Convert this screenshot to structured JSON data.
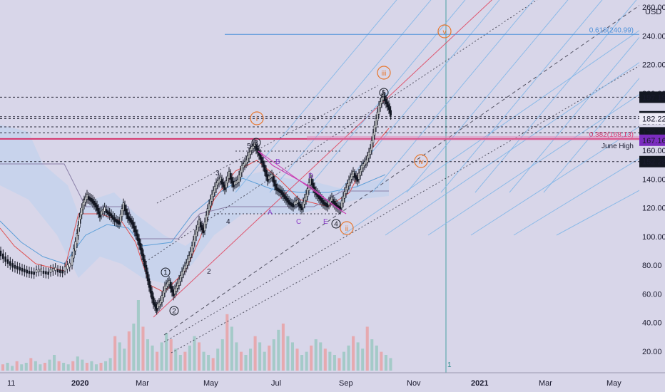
{
  "chart_data": {
    "type": "candlestick",
    "currency_label": "USD",
    "y_axis": {
      "ylim": [
        5,
        265
      ],
      "ticks": [
        20,
        40,
        60,
        80,
        100,
        120,
        140,
        160,
        180,
        200,
        220,
        240,
        260
      ],
      "tick_labels": [
        "20.00",
        "40.00",
        "60.00",
        "80.00",
        "100.00",
        "120.00",
        "140.00",
        "160.00",
        "180.00",
        "200.00",
        "220.00",
        "240.00",
        "260.00"
      ]
    },
    "x_axis": {
      "tick_labels": [
        "11",
        "2020",
        "Mar",
        "May",
        "Jul",
        "Sep",
        "Nov",
        "2021",
        "Mar",
        "May"
      ]
    },
    "price_labels": [
      {
        "text": "197.19",
        "value": 197.19,
        "style": "dark"
      },
      {
        "text": "183.58",
        "value": 183.58,
        "style": "dark"
      },
      {
        "text": "182.22",
        "value": 182.22,
        "style": "light"
      },
      {
        "text": "172.36",
        "value": 172.36,
        "style": "dark"
      },
      {
        "text": "167.16",
        "value": 167.16,
        "style": "purple"
      },
      {
        "text": "152.28",
        "value": 152.28,
        "style": "dark"
      }
    ],
    "horizontal_levels": [
      {
        "value": 197.19,
        "style": "dotted"
      },
      {
        "value": 183.58,
        "style": "dotted"
      },
      {
        "value": 182.22,
        "style": "dotted"
      },
      {
        "value": 176.5,
        "style": "dotted"
      },
      {
        "value": 172.36,
        "style": "dotted"
      },
      {
        "value": 152.28,
        "style": "dotted"
      }
    ],
    "fib_levels": [
      {
        "label": "0.618(240.99)",
        "value": 240.99,
        "color": "#4a90d9"
      },
      {
        "label": "0.382(168.13)",
        "value": 168.13,
        "color": "#d6336c"
      }
    ],
    "annotations": [
      {
        "text": "June High",
        "value": 163.5
      }
    ],
    "major_wave_labels": [
      "i",
      "ii",
      "iii",
      "iv",
      "v"
    ],
    "minor_wave_labels": [
      "1",
      "2",
      "3",
      "4",
      "5"
    ],
    "small_labels": [
      "2",
      "3",
      "4",
      "5",
      "1"
    ],
    "abcde_labels": [
      "A",
      "B",
      "C",
      "D",
      "E"
    ],
    "price_path": [
      [
        0,
        90
      ],
      [
        10,
        84
      ],
      [
        20,
        80
      ],
      [
        30,
        78
      ],
      [
        40,
        76
      ],
      [
        50,
        75
      ],
      [
        60,
        76
      ],
      [
        70,
        75
      ],
      [
        80,
        77
      ],
      [
        90,
        76
      ],
      [
        100,
        80
      ],
      [
        107,
        95
      ],
      [
        112,
        112
      ],
      [
        117,
        122
      ],
      [
        123,
        128
      ],
      [
        129,
        126
      ],
      [
        135,
        122
      ],
      [
        141,
        115
      ],
      [
        148,
        119
      ],
      [
        155,
        116
      ],
      [
        162,
        112
      ],
      [
        168,
        110
      ],
      [
        174,
        122
      ],
      [
        180,
        114
      ],
      [
        186,
        110
      ],
      [
        192,
        102
      ],
      [
        198,
        92
      ],
      [
        204,
        80
      ],
      [
        210,
        66
      ],
      [
        216,
        54
      ],
      [
        220,
        50
      ],
      [
        226,
        54
      ],
      [
        232,
        64
      ],
      [
        238,
        68
      ],
      [
        244,
        60
      ],
      [
        250,
        66
      ],
      [
        256,
        74
      ],
      [
        262,
        80
      ],
      [
        268,
        88
      ],
      [
        274,
        100
      ],
      [
        280,
        110
      ],
      [
        286,
        104
      ],
      [
        292,
        118
      ],
      [
        298,
        128
      ],
      [
        304,
        136
      ],
      [
        310,
        140
      ],
      [
        316,
        134
      ],
      [
        322,
        144
      ],
      [
        328,
        136
      ],
      [
        334,
        138
      ],
      [
        340,
        148
      ],
      [
        346,
        152
      ],
      [
        352,
        160
      ],
      [
        358,
        164
      ],
      [
        364,
        158
      ],
      [
        370,
        150
      ],
      [
        376,
        140
      ],
      [
        382,
        142
      ],
      [
        388,
        134
      ],
      [
        394,
        132
      ],
      [
        400,
        128
      ],
      [
        406,
        124
      ],
      [
        412,
        122
      ],
      [
        418,
        124
      ],
      [
        424,
        120
      ],
      [
        430,
        128
      ],
      [
        436,
        140
      ],
      [
        442,
        132
      ],
      [
        448,
        128
      ],
      [
        454,
        124
      ],
      [
        460,
        122
      ],
      [
        466,
        126
      ],
      [
        472,
        122
      ],
      [
        478,
        120
      ],
      [
        484,
        130
      ],
      [
        490,
        138
      ],
      [
        496,
        144
      ],
      [
        502,
        140
      ],
      [
        508,
        148
      ],
      [
        514,
        152
      ],
      [
        520,
        160
      ],
      [
        526,
        176
      ],
      [
        532,
        190
      ],
      [
        538,
        198
      ],
      [
        544,
        192
      ],
      [
        548,
        186
      ]
    ],
    "volume": [
      4,
      5,
      3,
      6,
      4,
      5,
      8,
      6,
      4,
      5,
      7,
      10,
      6,
      5,
      4,
      6,
      9,
      7,
      5,
      6,
      4,
      5,
      6,
      8,
      22,
      18,
      14,
      25,
      30,
      45,
      28,
      20,
      16,
      12,
      18,
      24,
      20,
      14,
      10,
      12,
      16,
      22,
      18,
      12,
      10,
      8,
      14,
      20,
      36,
      28,
      18,
      12,
      10,
      14,
      22,
      18,
      12,
      16,
      20,
      26,
      30,
      22,
      18,
      14,
      10,
      12,
      16,
      20,
      18,
      14,
      12,
      10,
      8,
      12,
      16,
      22,
      18,
      14,
      28,
      20,
      16,
      12,
      10,
      8
    ]
  }
}
